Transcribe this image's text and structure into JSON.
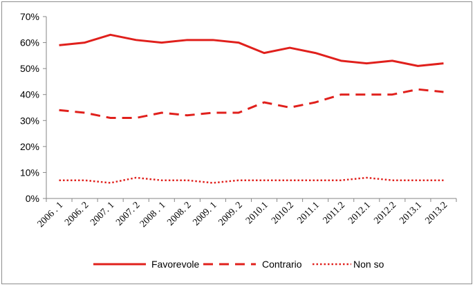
{
  "chart_data": {
    "type": "line",
    "title": "",
    "xlabel": "",
    "ylabel": "",
    "ylim": [
      0,
      70
    ],
    "y_ticks": [
      "0%",
      "10%",
      "20%",
      "30%",
      "40%",
      "50%",
      "60%",
      "70%"
    ],
    "grid": false,
    "legend_position": "bottom",
    "categories": [
      "2006 . 1",
      "2006. 2",
      "2007. 1",
      "2007. 2",
      "2008 . 1",
      "2008. 2",
      "2009. 1",
      "2009. 2",
      "2010.1",
      "2010.2",
      "2011.1",
      "2011.2",
      "2012.1",
      "2012.2",
      "2013.1",
      "2013.2"
    ],
    "series": [
      {
        "name": "Favorevole",
        "style": "solid",
        "color": "#e0201c",
        "values": [
          59,
          60,
          63,
          61,
          60,
          61,
          61,
          60,
          56,
          58,
          56,
          53,
          52,
          53,
          51,
          52
        ]
      },
      {
        "name": "Contrario",
        "style": "dashed",
        "color": "#e0201c",
        "values": [
          34,
          33,
          31,
          31,
          33,
          32,
          33,
          33,
          37,
          35,
          37,
          40,
          40,
          40,
          42,
          41
        ]
      },
      {
        "name": "Non so",
        "style": "dotted",
        "color": "#e0201c",
        "values": [
          7,
          7,
          6,
          8,
          7,
          7,
          6,
          7,
          7,
          7,
          7,
          7,
          8,
          7,
          7,
          7
        ]
      }
    ]
  }
}
